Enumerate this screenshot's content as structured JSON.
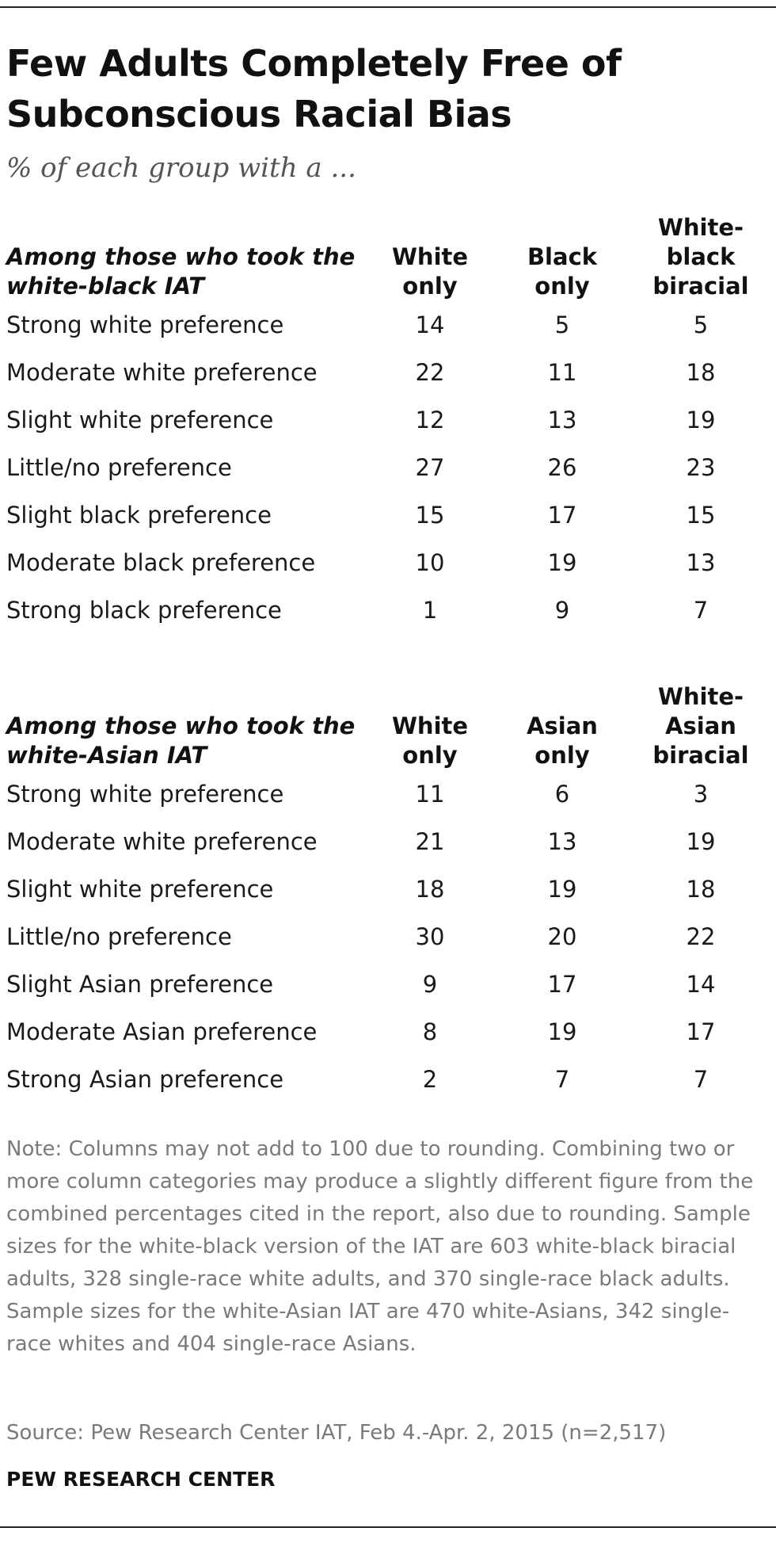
{
  "title": "Few Adults Completely Free of Subconscious Racial Bias",
  "subtitle": "% of each group with a ...",
  "chart_data": [
    {
      "type": "table",
      "title": "Among those who took the white-black IAT",
      "columns": [
        [
          "White",
          "only"
        ],
        [
          "Black",
          "only"
        ],
        [
          "White-",
          "black",
          "biracial"
        ]
      ],
      "rows": [
        {
          "label": "Strong white preference",
          "values": [
            14,
            5,
            5
          ]
        },
        {
          "label": "Moderate white preference",
          "values": [
            22,
            11,
            18
          ]
        },
        {
          "label": "Slight white preference",
          "values": [
            12,
            13,
            19
          ]
        },
        {
          "label": "Little/no preference",
          "values": [
            27,
            26,
            23
          ]
        },
        {
          "label": "Slight black preference",
          "values": [
            15,
            17,
            15
          ]
        },
        {
          "label": "Moderate black preference",
          "values": [
            10,
            19,
            13
          ]
        },
        {
          "label": "Strong black preference",
          "values": [
            1,
            9,
            7
          ]
        }
      ]
    },
    {
      "type": "table",
      "title": "Among those who took the white-Asian IAT",
      "columns": [
        [
          "White",
          "only"
        ],
        [
          "Asian",
          "only"
        ],
        [
          "White-",
          "Asian",
          "biracial"
        ]
      ],
      "rows": [
        {
          "label": "Strong white preference",
          "values": [
            11,
            6,
            3
          ]
        },
        {
          "label": "Moderate white preference",
          "values": [
            21,
            13,
            19
          ]
        },
        {
          "label": "Slight white preference",
          "values": [
            18,
            19,
            18
          ]
        },
        {
          "label": "Little/no preference",
          "values": [
            30,
            20,
            22
          ]
        },
        {
          "label": "Slight Asian preference",
          "values": [
            9,
            17,
            14
          ]
        },
        {
          "label": "Moderate Asian preference",
          "values": [
            8,
            19,
            17
          ]
        },
        {
          "label": "Strong Asian preference",
          "values": [
            2,
            7,
            7
          ]
        }
      ]
    }
  ],
  "note": "Note: Columns may not add to 100 due to rounding. Combining two or more column categories may produce a slightly different figure from the combined percentages cited in the report, also due to rounding. Sample sizes for the white-black version of the IAT are 603 white-black biracial adults, 328 single-race white adults, and 370 single-race black adults. Sample sizes for the white-Asian IAT are 470 white-Asians, 342 single-race whites and 404 single-race Asians.",
  "source": "Source: Pew Research Center IAT, Feb 4.-Apr. 2, 2015 (n=2,517)",
  "org": "PEW RESEARCH CENTER"
}
